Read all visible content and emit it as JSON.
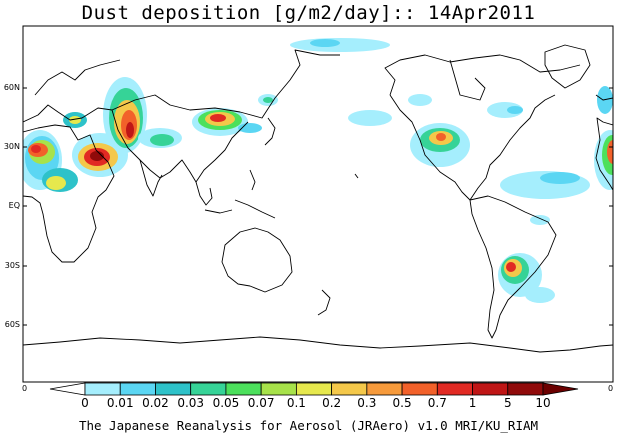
{
  "title": "Dust deposition [g/m2/day]:: 14Apr2011",
  "credit": "The Japanese Reanalysis for Aerosol (JRAero) v1.0 MRI/KU_RIAM",
  "lat_labels": [
    "60N",
    "30N",
    "EQ",
    "30S",
    "60S"
  ],
  "edge_labels": {
    "left": "0",
    "right": "0"
  },
  "colorbar": {
    "ticks": [
      "0",
      "0.01",
      "0.02",
      "0.03",
      "0.05",
      "0.07",
      "0.1",
      "0.2",
      "0.3",
      "0.5",
      "0.7",
      "1",
      "5",
      "10"
    ],
    "colors": [
      "#ffffff",
      "#a5eefd",
      "#5bd6f3",
      "#2ec2c9",
      "#36d397",
      "#4ce05c",
      "#a7e24a",
      "#e6e84d",
      "#f4c84a",
      "#f69a3b",
      "#f2612a",
      "#e12a23",
      "#bf1616",
      "#900a0a",
      "#6b0000"
    ]
  }
}
